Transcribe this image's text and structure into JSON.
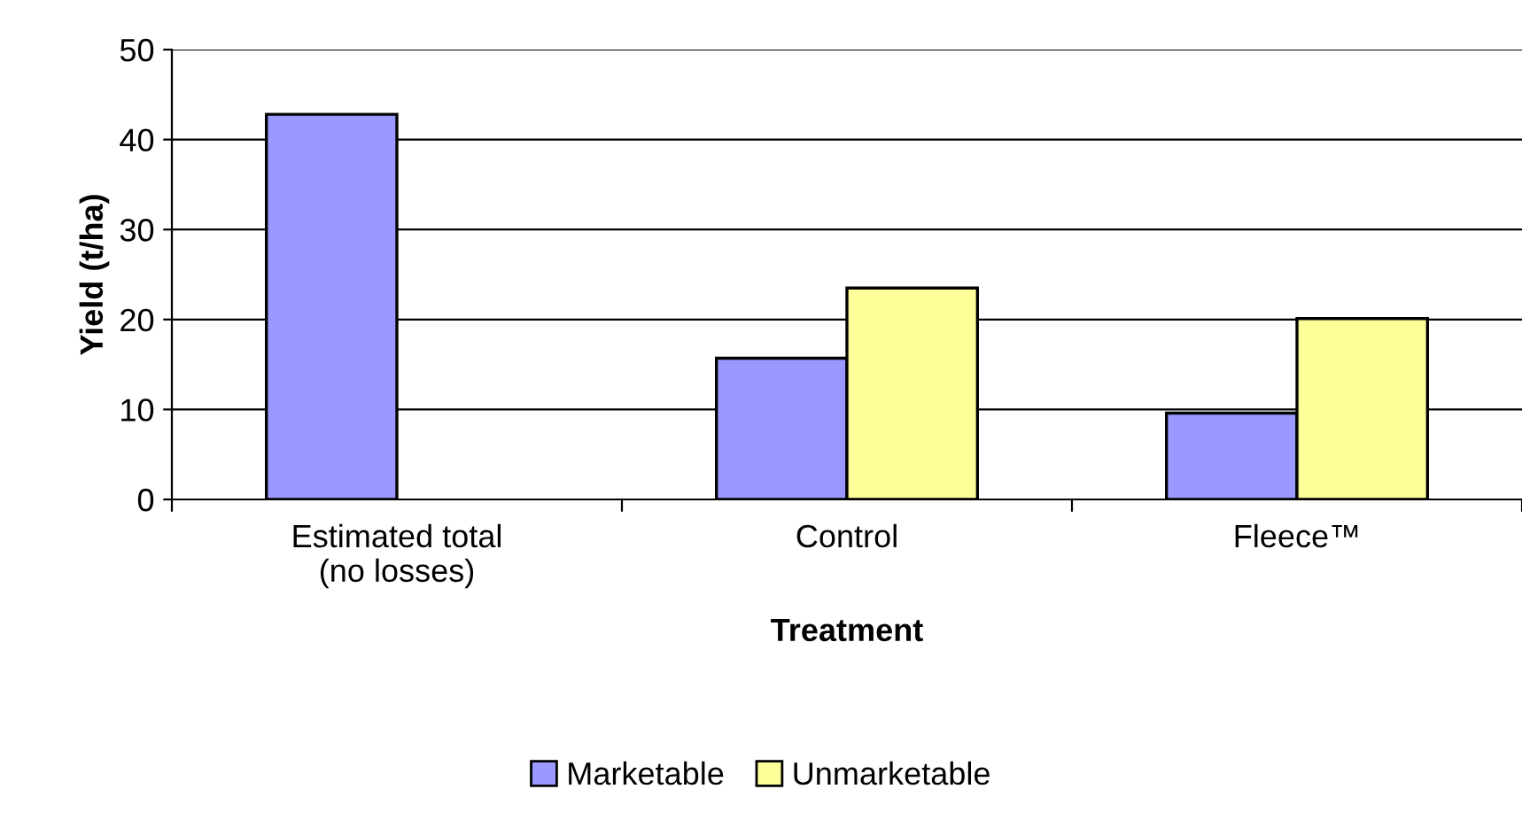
{
  "chart_data": {
    "type": "bar",
    "xlabel": "Treatment",
    "ylabel": "Yield (t/ha)",
    "categories": [
      "Estimated total\n(no losses)",
      "Control",
      "Fleece™"
    ],
    "series": [
      {
        "name": "Marketable",
        "color": "#9999ff",
        "values": [
          42.8,
          15.7,
          9.6
        ]
      },
      {
        "name": "Unmarketable",
        "color": "#ffff99",
        "values": [
          null,
          23.5,
          20.1
        ]
      }
    ],
    "ylim": [
      0,
      50
    ],
    "yticks": [
      0,
      10,
      20,
      30,
      40,
      50
    ],
    "grid": "y",
    "legend": "bottom"
  }
}
